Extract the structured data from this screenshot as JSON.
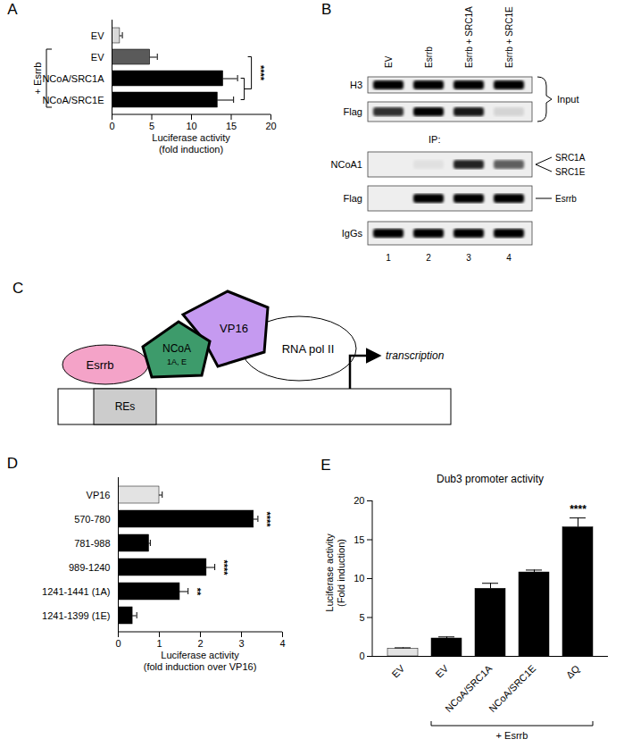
{
  "chart_data": [
    {
      "type": "bar",
      "panel": "A",
      "orientation": "horizontal",
      "categories": [
        "EV",
        "EV",
        "NCoA/SRC1A",
        "NCoA/SRC1E"
      ],
      "values": [
        1,
        4.8,
        14,
        13.3
      ],
      "errors": [
        0.3,
        0.9,
        1.8,
        2.0
      ],
      "colors": [
        "#d9d9d9",
        "#5a5a5a",
        "#000000",
        "#000000"
      ],
      "xlim": [
        0,
        20
      ],
      "xticks": [
        0,
        5,
        10,
        15,
        20
      ],
      "x_label": "Luciferase activity\n(fold induction)",
      "group": {
        "label": "+ Esrrb",
        "categories": [
          1,
          2,
          3
        ]
      },
      "significance": {
        "label": "****",
        "between": [
          1,
          2,
          3
        ]
      }
    },
    {
      "type": "bar",
      "panel": "D",
      "orientation": "horizontal",
      "categories": [
        "VP16",
        "570-780",
        "781-988",
        "989-1240",
        "1241-1441 (1A)",
        "1241-1399 (1E)"
      ],
      "values": [
        1.0,
        3.3,
        0.75,
        2.15,
        1.5,
        0.35
      ],
      "errors": [
        0.07,
        0.1,
        0.03,
        0.2,
        0.2,
        0.1
      ],
      "colors": [
        "#e3e3e3",
        "#000000",
        "#000000",
        "#000000",
        "#000000",
        "#000000"
      ],
      "xlim": [
        0,
        4
      ],
      "xticks": [
        0,
        1,
        2,
        3,
        4
      ],
      "x_label": "Luciferase activity\n(fold induction over VP16)",
      "significance": [
        null,
        "****",
        null,
        "****",
        "**",
        null
      ]
    },
    {
      "type": "bar",
      "panel": "E",
      "title": "Dub3 promoter activity",
      "categories": [
        "EV",
        "EV",
        "NCoA/SRC1A",
        "NCoA/SRC1E",
        "ΔQ"
      ],
      "values": [
        1,
        2.3,
        8.7,
        10.8,
        16.6
      ],
      "errors": [
        0.1,
        0.2,
        0.7,
        0.3,
        1.2
      ],
      "colors": [
        "#e3e3e3",
        "#000000",
        "#000000",
        "#000000",
        "#000000"
      ],
      "ylim": [
        0,
        20
      ],
      "yticks": [
        0,
        5,
        10,
        15,
        20
      ],
      "y_label": "Luciferase activity\n(Fold induction)",
      "group": {
        "label": "+ Esrrb",
        "categories": [
          1,
          2,
          3,
          4
        ]
      },
      "significance": [
        null,
        null,
        null,
        null,
        "****"
      ]
    }
  ],
  "blot": {
    "panel": "B",
    "lanes": [
      "EV",
      "Esrrb",
      "Esrrb + SRC1A",
      "Esrrb + SRC1E"
    ],
    "lane_numbers": [
      "1",
      "2",
      "3",
      "4"
    ],
    "sections": [
      {
        "label": "Input",
        "rows": [
          {
            "label": "H3",
            "bands": [
              1,
              1,
              1,
              1
            ]
          },
          {
            "label": "Flag",
            "bands": [
              0.8,
              1,
              0.9,
              0.1
            ]
          }
        ]
      },
      {
        "label": "IP:",
        "rows": [
          {
            "label": "NCoA1",
            "bands": [
              0,
              0.05,
              0.85,
              0.6
            ],
            "right_labels": [
              "SRC1A",
              "SRC1E"
            ]
          },
          {
            "label": "Flag",
            "bands": [
              0,
              1,
              1,
              1
            ],
            "right_labels": [
              "Esrrb"
            ]
          },
          {
            "label": "IgGs",
            "bands": [
              1,
              1,
              1,
              1
            ]
          }
        ]
      }
    ]
  },
  "diagram": {
    "panel": "C",
    "nodes": {
      "esrrb": "Esrrb",
      "ncoa": "NCoA",
      "ncoa_sub": "1A, E",
      "vp16": "VP16",
      "pol": "RNA pol II",
      "res": "REs",
      "transcription": "transcription"
    }
  }
}
